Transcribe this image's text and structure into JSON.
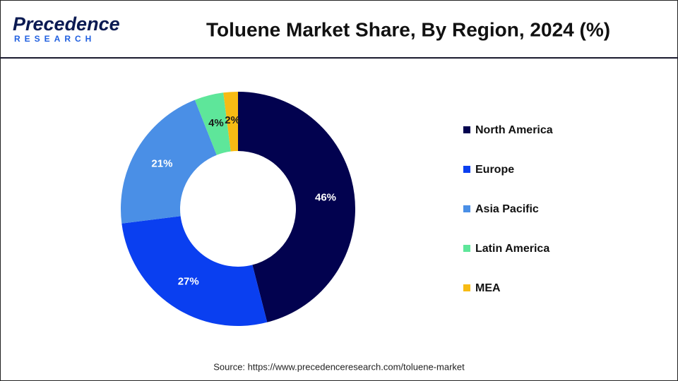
{
  "logo": {
    "name": "Precedence",
    "tagline": "RESEARCH"
  },
  "chart_data": {
    "type": "pie",
    "title": "Toluene Market Share, By Region, 2024 (%)",
    "categories": [
      "North America",
      "Europe",
      "Asia Pacific",
      "Latin America",
      "MEA"
    ],
    "values": [
      46,
      27,
      21,
      4,
      2
    ],
    "value_labels": [
      "46%",
      "27%",
      "21%",
      "4%",
      "2%"
    ],
    "colors": [
      "#02024f",
      "#0a3ff0",
      "#4a8fe6",
      "#5ee69a",
      "#f7bb14"
    ],
    "donut": true,
    "legend": "right",
    "source": "Source: https://www.precedenceresearch.com/toluene-market"
  }
}
